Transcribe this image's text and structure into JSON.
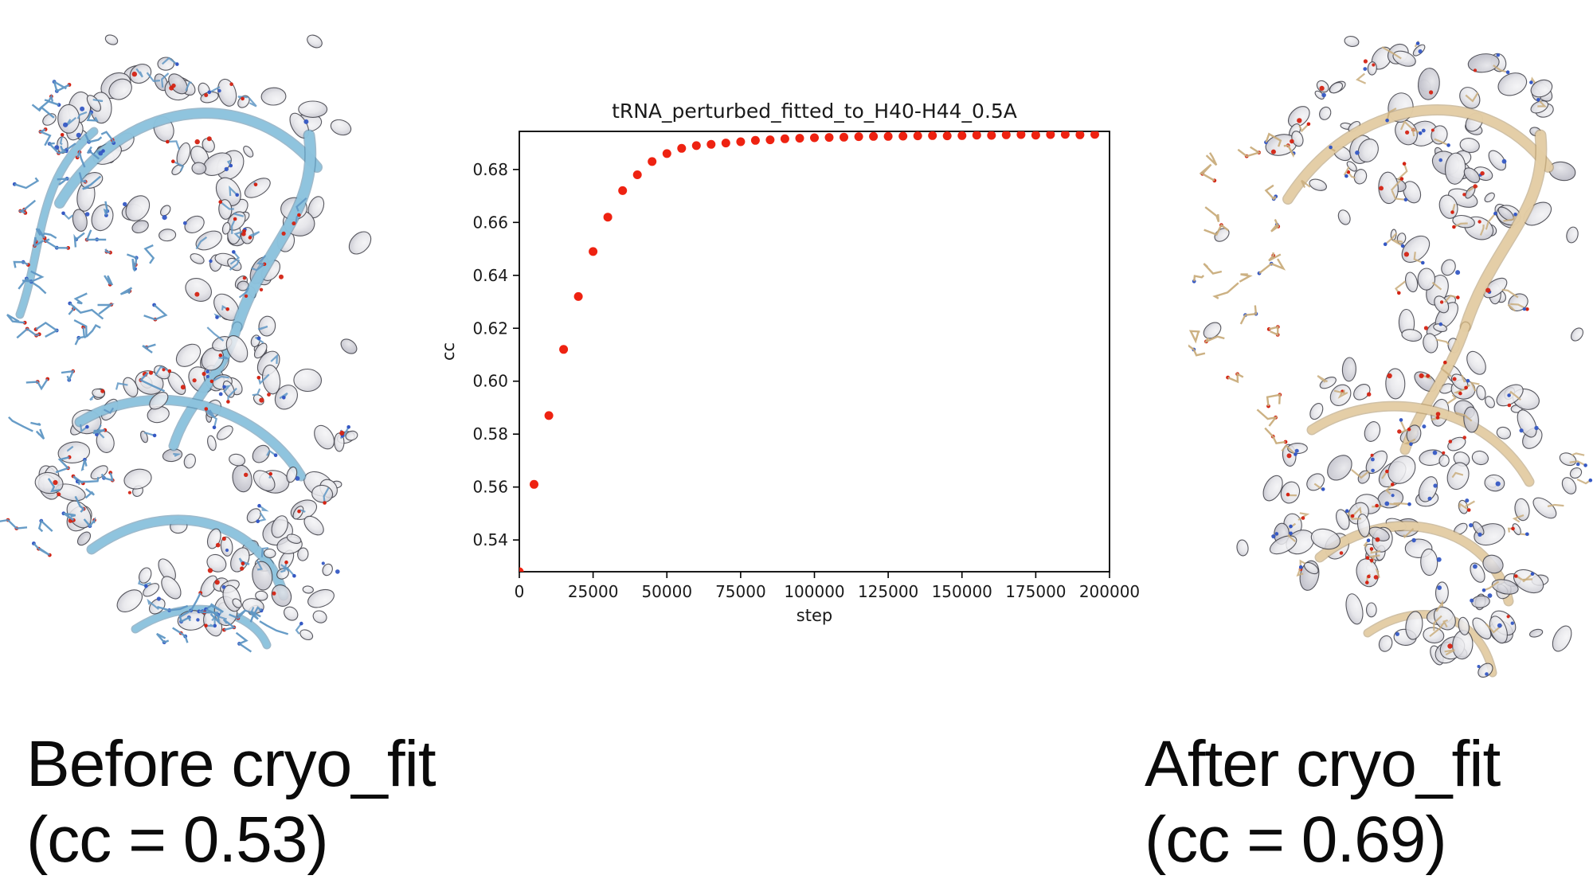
{
  "captions": {
    "before": {
      "line1": "Before cryo_fit",
      "line2": "(cc = 0.53)"
    },
    "after": {
      "line1": "After cryo_fit",
      "line2": "(cc = 0.69)"
    }
  },
  "molecules": {
    "before": {
      "label": "perturbed tRNA model in cryo-EM density map (model partly outside density)",
      "surface_outline_color": "#3c3c44",
      "surface_light": "#f4f4f6",
      "surface_mid": "#e6e6ea",
      "surface_dark": "#b9b9c4",
      "model_stick_color": "#5f97c4",
      "model_ribbon_color": "#8ec4de",
      "model_ribbon_shadow": "#4f82a2",
      "oxygen_color": "#d42313",
      "nitrogen_color": "#3558c4"
    },
    "after": {
      "label": "fitted tRNA model inside cryo-EM density map",
      "surface_outline_color": "#3c3c44",
      "surface_light": "#f4f4f6",
      "surface_mid": "#e6e6ea",
      "surface_dark": "#b9b9c4",
      "model_stick_color": "#c9ad7c",
      "model_ribbon_color": "#e5cfa6",
      "model_ribbon_shadow": "#a98e5f",
      "oxygen_color": "#d42313",
      "nitrogen_color": "#3558c4"
    }
  },
  "chart_data": {
    "type": "scatter",
    "title": "tRNA_perturbed_fitted_to_H40-H44_0.5A",
    "xlabel": "step",
    "ylabel": "cc",
    "xlim": [
      0,
      200000
    ],
    "ylim": [
      0.528,
      0.6944
    ],
    "xticks": [
      0,
      25000,
      50000,
      75000,
      100000,
      125000,
      150000,
      175000,
      200000
    ],
    "yticks": [
      0.54,
      0.56,
      0.58,
      0.6,
      0.62,
      0.64,
      0.66,
      0.68
    ],
    "grid": false,
    "legend": null,
    "marker": {
      "color": "#ee2211",
      "radius_px": 5.5
    },
    "series": [
      {
        "name": "cc vs step",
        "x": [
          0,
          5000,
          10000,
          15000,
          20000,
          25000,
          30000,
          35000,
          40000,
          45000,
          50000,
          55000,
          60000,
          65000,
          70000,
          75000,
          80000,
          85000,
          90000,
          95000,
          100000,
          105000,
          110000,
          115000,
          120000,
          125000,
          130000,
          135000,
          140000,
          145000,
          150000,
          155000,
          160000,
          165000,
          170000,
          175000,
          180000,
          185000,
          190000,
          195000
        ],
        "y": [
          0.528,
          0.561,
          0.587,
          0.612,
          0.632,
          0.649,
          0.662,
          0.672,
          0.678,
          0.683,
          0.686,
          0.688,
          0.689,
          0.6895,
          0.69,
          0.6905,
          0.691,
          0.6912,
          0.6916,
          0.6918,
          0.692,
          0.6921,
          0.6922,
          0.6924,
          0.6925,
          0.6925,
          0.6926,
          0.6927,
          0.6928,
          0.6927,
          0.6928,
          0.693,
          0.6929,
          0.6931,
          0.6932,
          0.693,
          0.6932,
          0.6933,
          0.6931,
          0.6933
        ]
      }
    ]
  }
}
